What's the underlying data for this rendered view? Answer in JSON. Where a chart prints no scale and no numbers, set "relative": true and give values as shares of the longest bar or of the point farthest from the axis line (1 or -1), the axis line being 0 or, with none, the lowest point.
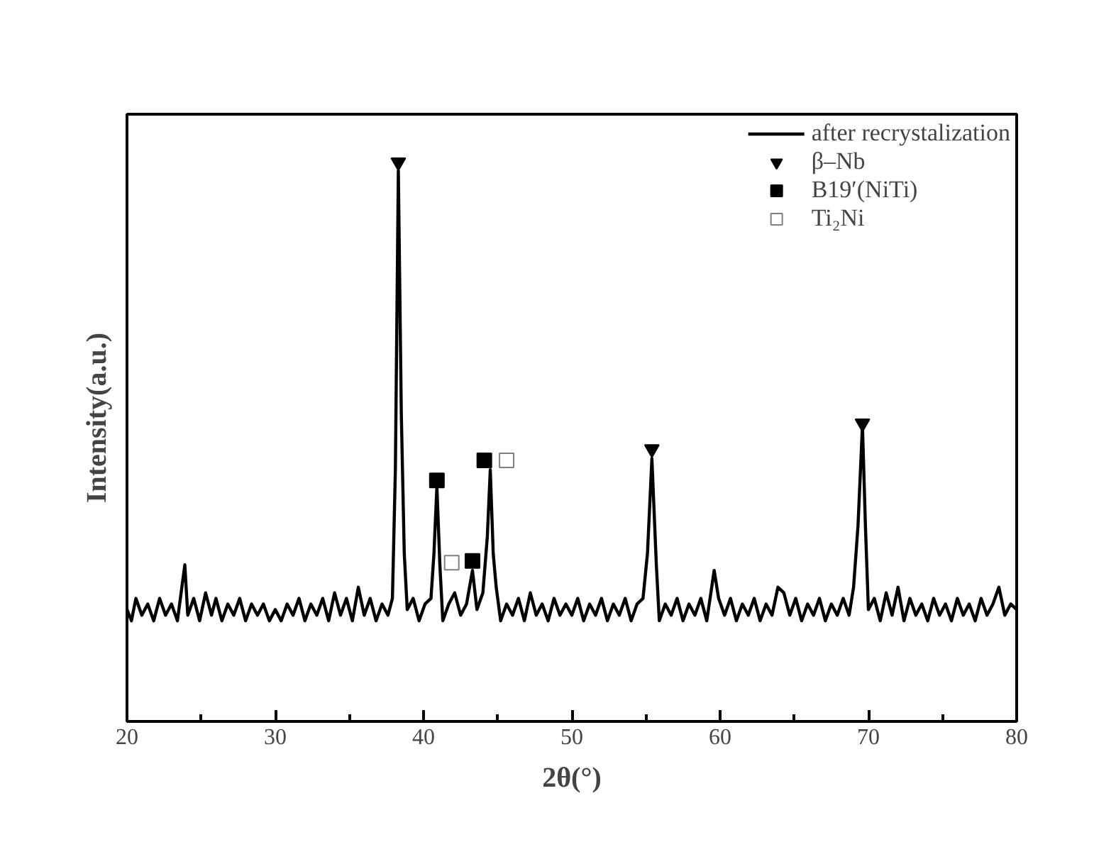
{
  "chart_data": {
    "type": "line",
    "relative": true,
    "xlabel": "2θ(°)",
    "ylabel": "Intensity(a.u.)",
    "xlim": [
      20,
      80
    ],
    "xticks": [
      20,
      {
        "value": 25,
        "label": null
      },
      30,
      {
        "value": 35,
        "label": null
      },
      40,
      {
        "value": 45,
        "label": null
      },
      50,
      {
        "value": 55,
        "label": null
      },
      60,
      {
        "value": 65,
        "label": null
      },
      70,
      {
        "value": 75,
        "label": null
      },
      80
    ],
    "grid": false,
    "legend": "top right",
    "tick_labels": "x",
    "series": [
      {
        "name": "after recrystalization",
        "color": "#000000",
        "line_style": "solid",
        "x": [
          20.0,
          20.3,
          20.6,
          21.0,
          21.4,
          21.8,
          22.2,
          22.6,
          23.0,
          23.4,
          23.9,
          24.1,
          24.5,
          24.9,
          25.3,
          25.7,
          26.0,
          26.4,
          26.8,
          27.2,
          27.6,
          28.0,
          28.4,
          28.8,
          29.2,
          29.6,
          30.0,
          30.4,
          30.8,
          31.2,
          31.6,
          32.0,
          32.4,
          32.8,
          33.2,
          33.6,
          34.0,
          34.4,
          34.8,
          35.2,
          35.6,
          36.0,
          36.4,
          36.8,
          37.2,
          37.6,
          37.9,
          38.1,
          38.3,
          38.5,
          38.7,
          38.9,
          39.3,
          39.7,
          40.1,
          40.5,
          40.7,
          40.9,
          41.1,
          41.3,
          41.7,
          42.1,
          42.5,
          42.9,
          43.3,
          43.6,
          44.0,
          44.3,
          44.5,
          44.7,
          44.9,
          45.2,
          45.6,
          46.0,
          46.4,
          46.8,
          47.2,
          47.6,
          48.0,
          48.4,
          48.8,
          49.2,
          49.6,
          50.0,
          50.4,
          50.8,
          51.2,
          51.6,
          52.0,
          52.4,
          52.8,
          53.2,
          53.6,
          54.0,
          54.4,
          54.8,
          55.1,
          55.4,
          55.7,
          55.9,
          56.3,
          56.7,
          57.1,
          57.5,
          57.9,
          58.3,
          58.7,
          59.1,
          59.6,
          59.9,
          60.3,
          60.7,
          61.1,
          61.5,
          61.9,
          62.3,
          62.7,
          63.1,
          63.5,
          63.9,
          64.3,
          64.7,
          65.1,
          65.5,
          65.9,
          66.3,
          66.7,
          67.1,
          67.5,
          67.9,
          68.3,
          68.7,
          69.0,
          69.3,
          69.6,
          69.8,
          70.0,
          70.4,
          70.8,
          71.2,
          71.6,
          72.0,
          72.4,
          72.8,
          73.2,
          73.6,
          74.0,
          74.4,
          74.8,
          75.2,
          75.6,
          76.0,
          76.4,
          76.8,
          77.2,
          77.6,
          78.0,
          78.4,
          78.8,
          79.2,
          79.6,
          80.0
        ],
        "values": [
          0.2,
          0.18,
          0.22,
          0.19,
          0.21,
          0.18,
          0.22,
          0.19,
          0.21,
          0.18,
          0.28,
          0.19,
          0.22,
          0.18,
          0.23,
          0.19,
          0.22,
          0.18,
          0.21,
          0.19,
          0.22,
          0.18,
          0.21,
          0.19,
          0.21,
          0.18,
          0.2,
          0.18,
          0.21,
          0.19,
          0.22,
          0.18,
          0.21,
          0.19,
          0.22,
          0.18,
          0.23,
          0.19,
          0.22,
          0.18,
          0.24,
          0.19,
          0.22,
          0.18,
          0.21,
          0.19,
          0.22,
          0.45,
          0.985,
          0.55,
          0.3,
          0.2,
          0.22,
          0.18,
          0.21,
          0.22,
          0.3,
          0.42,
          0.28,
          0.18,
          0.21,
          0.23,
          0.19,
          0.21,
          0.27,
          0.2,
          0.23,
          0.33,
          0.45,
          0.3,
          0.24,
          0.18,
          0.21,
          0.19,
          0.22,
          0.18,
          0.23,
          0.19,
          0.21,
          0.18,
          0.22,
          0.19,
          0.21,
          0.19,
          0.22,
          0.18,
          0.21,
          0.19,
          0.22,
          0.18,
          0.21,
          0.19,
          0.22,
          0.18,
          0.21,
          0.22,
          0.3,
          0.47,
          0.28,
          0.18,
          0.21,
          0.19,
          0.22,
          0.18,
          0.21,
          0.19,
          0.22,
          0.18,
          0.27,
          0.22,
          0.19,
          0.22,
          0.18,
          0.21,
          0.19,
          0.22,
          0.18,
          0.21,
          0.19,
          0.24,
          0.23,
          0.19,
          0.22,
          0.18,
          0.21,
          0.19,
          0.22,
          0.18,
          0.21,
          0.19,
          0.22,
          0.19,
          0.24,
          0.35,
          0.53,
          0.35,
          0.2,
          0.22,
          0.18,
          0.23,
          0.19,
          0.24,
          0.18,
          0.22,
          0.19,
          0.21,
          0.18,
          0.22,
          0.19,
          0.21,
          0.18,
          0.22,
          0.19,
          0.21,
          0.18,
          0.22,
          0.19,
          0.21,
          0.24,
          0.19,
          0.21,
          0.2
        ]
      },
      {
        "name": "β–Nb",
        "type": "scatter",
        "marker": "triangle",
        "color": "#000000",
        "x": [
          38.3,
          55.4,
          69.6
        ],
        "values": [
          1.0,
          0.487,
          0.533
        ]
      },
      {
        "name": "B19′(NiTi)",
        "type": "scatter",
        "marker": "square",
        "color": "#000000",
        "x": [
          40.9,
          43.3,
          44.1
        ],
        "values": [
          0.431,
          0.287,
          0.467
        ]
      },
      {
        "name": "Ti₂Ni",
        "type": "scatter",
        "marker": "square",
        "color": "#808080",
        "x": [
          41.9,
          45.6
        ],
        "values": [
          0.284,
          0.467
        ]
      }
    ]
  }
}
